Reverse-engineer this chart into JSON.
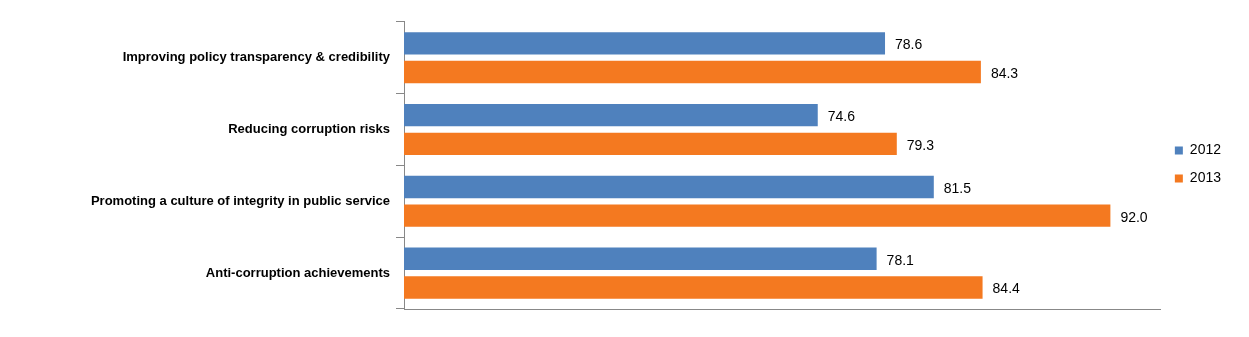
{
  "chart_data": {
    "type": "bar",
    "orientation": "horizontal",
    "categories": [
      "Improving policy transparency & credibility",
      "Reducing corruption risks",
      "Promoting a culture of integrity in public service",
      "Anti-corruption achievements"
    ],
    "series": [
      {
        "name": "2012",
        "color": "#4f81bd",
        "values": [
          78.6,
          74.6,
          81.5,
          78.1
        ],
        "value_labels": [
          "78.6",
          "74.6",
          "81.5",
          "78.1"
        ]
      },
      {
        "name": "2013",
        "color": "#f47920",
        "values": [
          84.3,
          79.3,
          92.0,
          84.4
        ],
        "value_labels": [
          "84.3",
          "79.3",
          "92.0",
          "84.4"
        ]
      }
    ],
    "xlim": [
      50,
      95
    ],
    "legend": "right",
    "tick_labels": "y"
  }
}
